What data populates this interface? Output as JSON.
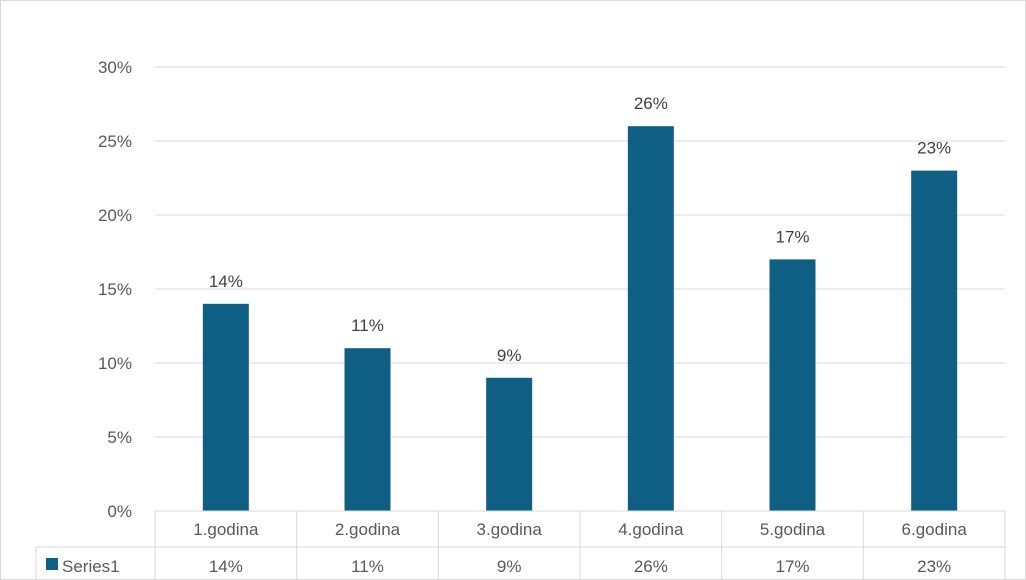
{
  "chart_data": {
    "type": "bar",
    "categories": [
      "1.godina",
      "2.godina",
      "3.godina",
      "4.godina",
      "5.godina",
      "6.godina"
    ],
    "series": [
      {
        "name": "Series1",
        "values": [
          0.14,
          0.11,
          0.09,
          0.26,
          0.17,
          0.23
        ],
        "labels": [
          "14%",
          "11%",
          "9%",
          "26%",
          "17%",
          "23%"
        ],
        "color": "#0f5f84"
      }
    ],
    "y_ticks": [
      0,
      0.05,
      0.1,
      0.15,
      0.2,
      0.25,
      0.3
    ],
    "y_tick_labels": [
      "0%",
      "5%",
      "10%",
      "15%",
      "20%",
      "25%",
      "30%"
    ],
    "ylim": [
      0,
      0.3
    ],
    "grid": true,
    "data_table": true,
    "colors": {
      "bar": "#0f5f84",
      "grid": "#d9d9d9",
      "text": "#595959"
    }
  }
}
